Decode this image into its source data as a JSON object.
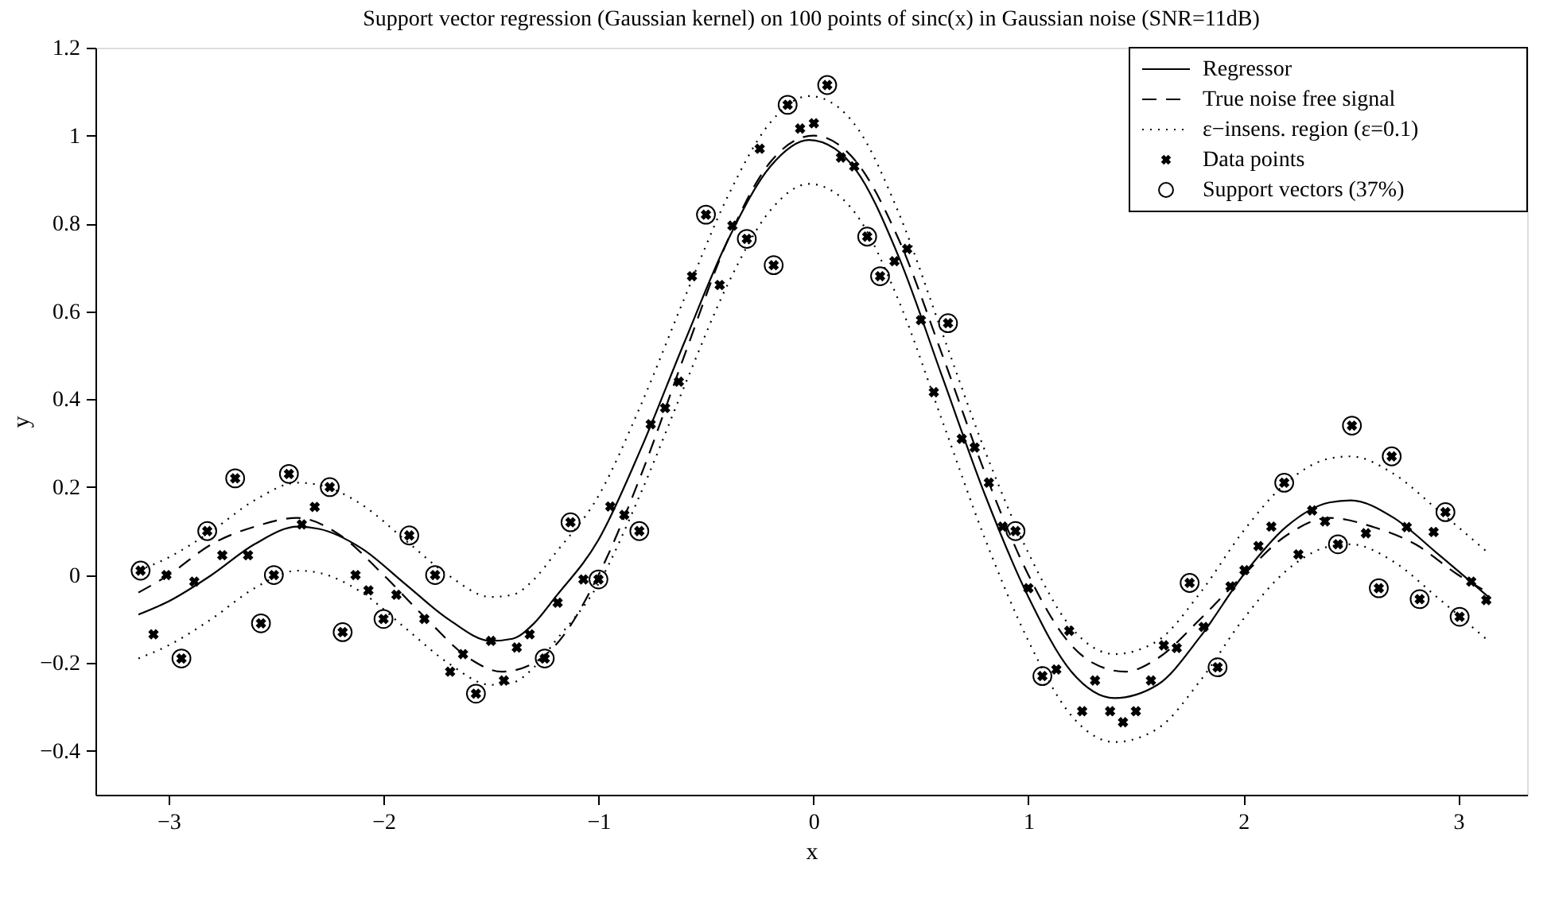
{
  "chart_data": {
    "type": "scatter",
    "title": "Support vector regression (Gaussian kernel) on 100 points of sinc(x) in Gaussian noise (SNR=11dB)",
    "xlabel": "x",
    "ylabel": "y",
    "xlim": [
      -3.34,
      3.32
    ],
    "ylim": [
      -0.5,
      1.2
    ],
    "xticks": [
      {
        "value": -3,
        "label": "−3"
      },
      {
        "value": -2,
        "label": "−2"
      },
      {
        "value": -1,
        "label": "−1"
      },
      0,
      1,
      2,
      3
    ],
    "yticks": [
      {
        "value": -0.4,
        "label": "−0.4"
      },
      {
        "value": -0.2,
        "label": "−0.2"
      },
      0,
      0.2,
      0.4,
      0.6,
      0.8,
      1,
      1.2
    ],
    "grid": false,
    "legend": "top right",
    "series": [
      {
        "name": "Regressor",
        "type": "line",
        "line_style": "solid",
        "color": "#000000",
        "x": [
          -3.14,
          -3.0,
          -2.8,
          -2.6,
          -2.4,
          -2.3,
          -2.1,
          -1.9,
          -1.7,
          -1.5,
          -1.4,
          -1.3,
          -1.2,
          -1.0,
          -0.8,
          -0.6,
          -0.4,
          -0.2,
          -0.02,
          0.1,
          0.2,
          0.4,
          0.6,
          0.8,
          1.0,
          1.2,
          1.4,
          1.6,
          1.8,
          2.0,
          2.2,
          2.4,
          2.5,
          2.7,
          2.9,
          3.14
        ],
        "values": [
          -0.09,
          -0.06,
          0.0,
          0.07,
          0.11,
          0.105,
          0.06,
          -0.02,
          -0.1,
          -0.15,
          -0.145,
          -0.11,
          -0.05,
          0.08,
          0.29,
          0.53,
          0.76,
          0.93,
          0.99,
          0.97,
          0.92,
          0.72,
          0.45,
          0.18,
          -0.05,
          -0.22,
          -0.28,
          -0.25,
          -0.14,
          0.0,
          0.11,
          0.165,
          0.17,
          0.13,
          0.05,
          -0.05
        ]
      },
      {
        "name": "True noise free signal",
        "type": "line",
        "line_style": "dashed",
        "color": "#000000",
        "x": [
          -3.14,
          -3.0,
          -2.8,
          -2.6,
          -2.4,
          -2.2,
          -2.0,
          -1.8,
          -1.6,
          -1.45,
          -1.3,
          -1.2,
          -1.0,
          -0.8,
          -0.6,
          -0.4,
          -0.2,
          0,
          0.2,
          0.4,
          0.6,
          0.8,
          1.0,
          1.2,
          1.3,
          1.45,
          1.6,
          1.8,
          2.0,
          2.2,
          2.4,
          2.6,
          2.8,
          3.0,
          3.14
        ],
        "values": [
          -0.04,
          0.0,
          0.07,
          0.11,
          0.13,
          0.09,
          0.0,
          -0.1,
          -0.19,
          -0.22,
          -0.2,
          -0.16,
          0.0,
          0.23,
          0.5,
          0.76,
          0.94,
          1.0,
          0.94,
          0.76,
          0.5,
          0.23,
          0.0,
          -0.16,
          -0.2,
          -0.22,
          -0.19,
          -0.1,
          0.0,
          0.09,
          0.13,
          0.11,
          0.07,
          0.0,
          -0.04
        ]
      },
      {
        "name": "ε−insens. region (ε=0.1)",
        "type": "line",
        "line_style": "dotted",
        "color": "#000000",
        "x": [
          -3.14,
          -3.0,
          -2.8,
          -2.6,
          -2.4,
          -2.3,
          -2.1,
          -1.9,
          -1.7,
          -1.5,
          -1.4,
          -1.3,
          -1.2,
          -1.0,
          -0.8,
          -0.6,
          -0.4,
          -0.2,
          -0.02,
          0.1,
          0.2,
          0.4,
          0.6,
          0.8,
          1.0,
          1.2,
          1.4,
          1.6,
          1.8,
          2.0,
          2.2,
          2.4,
          2.5,
          2.7,
          2.9,
          3.14
        ],
        "values": [
          0.01,
          0.04,
          0.1,
          0.17,
          0.21,
          0.205,
          0.16,
          0.08,
          0.0,
          -0.05,
          -0.045,
          -0.01,
          0.05,
          0.18,
          0.39,
          0.63,
          0.86,
          1.03,
          1.09,
          1.07,
          1.02,
          0.82,
          0.55,
          0.28,
          0.05,
          -0.12,
          -0.18,
          -0.15,
          -0.04,
          0.1,
          0.21,
          0.265,
          0.27,
          0.23,
          0.15,
          0.05
        ]
      },
      {
        "type": "line",
        "line_style": "dotted",
        "color": "#000000",
        "x": [
          -3.14,
          -3.0,
          -2.8,
          -2.6,
          -2.4,
          -2.3,
          -2.1,
          -1.9,
          -1.7,
          -1.5,
          -1.4,
          -1.3,
          -1.2,
          -1.0,
          -0.8,
          -0.6,
          -0.4,
          -0.2,
          -0.02,
          0.1,
          0.2,
          0.4,
          0.6,
          0.8,
          1.0,
          1.2,
          1.4,
          1.6,
          1.8,
          2.0,
          2.2,
          2.4,
          2.5,
          2.7,
          2.9,
          3.14
        ],
        "values": [
          -0.19,
          -0.16,
          -0.1,
          -0.03,
          0.01,
          0.005,
          -0.04,
          -0.12,
          -0.2,
          -0.25,
          -0.245,
          -0.21,
          -0.15,
          -0.02,
          0.19,
          0.43,
          0.66,
          0.83,
          0.89,
          0.87,
          0.82,
          0.62,
          0.35,
          0.08,
          -0.15,
          -0.32,
          -0.38,
          -0.35,
          -0.24,
          -0.1,
          0.01,
          0.065,
          0.07,
          0.03,
          -0.05,
          -0.15
        ]
      },
      {
        "name": "Data points",
        "marker": "cross",
        "color": "#000000",
        "x": [
          -3.13,
          -3.07,
          -3.01,
          -2.94,
          -2.88,
          -2.82,
          -2.75,
          -2.69,
          -2.63,
          -2.57,
          -2.51,
          -2.44,
          -2.38,
          -2.32,
          -2.25,
          -2.19,
          -2.13,
          -2.07,
          -2.0,
          -1.94,
          -1.88,
          -1.81,
          -1.76,
          -1.69,
          -1.63,
          -1.57,
          -1.5,
          -1.44,
          -1.38,
          -1.32,
          -1.25,
          -1.19,
          -1.13,
          -1.07,
          -1.0,
          -0.945,
          -0.88,
          -0.81,
          -0.757,
          -0.69,
          -0.626,
          -0.565,
          -0.5,
          -0.436,
          -0.377,
          -0.31,
          -0.25,
          -0.185,
          -0.12,
          -0.062,
          0.002,
          0.064,
          0.128,
          0.19,
          0.25,
          0.31,
          0.377,
          0.436,
          0.5,
          0.56,
          0.626,
          0.69,
          0.75,
          0.816,
          0.88,
          0.94,
          1.0,
          1.065,
          1.13,
          1.19,
          1.25,
          1.31,
          1.38,
          1.44,
          1.5,
          1.57,
          1.63,
          1.69,
          1.75,
          1.815,
          1.88,
          1.94,
          2.005,
          2.07,
          2.13,
          2.19,
          2.256,
          2.32,
          2.38,
          2.44,
          2.505,
          2.57,
          2.63,
          2.69,
          2.76,
          2.82,
          2.885,
          2.94,
          3.006,
          3.06,
          3.13
        ],
        "values": [
          0.01,
          -0.135,
          0.0,
          -0.19,
          -0.015,
          0.1,
          0.045,
          0.22,
          0.045,
          -0.11,
          0.0,
          0.23,
          0.115,
          0.155,
          0.2,
          -0.13,
          0.0,
          -0.035,
          -0.1,
          -0.045,
          0.09,
          -0.1,
          0.0,
          -0.22,
          -0.18,
          -0.27,
          -0.15,
          -0.24,
          -0.165,
          -0.135,
          -0.19,
          -0.063,
          0.12,
          -0.01,
          -0.01,
          0.156,
          0.137,
          0.1,
          0.343,
          0.38,
          0.44,
          0.68,
          0.82,
          0.66,
          0.795,
          0.765,
          0.97,
          0.705,
          1.07,
          1.016,
          1.028,
          1.115,
          0.95,
          0.93,
          0.77,
          0.68,
          0.714,
          0.742,
          0.58,
          0.416,
          0.573,
          0.31,
          0.29,
          0.21,
          0.11,
          0.1,
          -0.03,
          -0.23,
          -0.215,
          -0.127,
          -0.31,
          -0.24,
          -0.31,
          -0.335,
          -0.31,
          -0.24,
          -0.16,
          -0.166,
          -0.018,
          -0.118,
          -0.21,
          -0.026,
          0.011,
          0.066,
          0.11,
          0.21,
          0.047,
          0.147,
          0.122,
          0.07,
          0.34,
          0.095,
          -0.03,
          0.27,
          0.109,
          -0.055,
          0.098,
          0.143,
          -0.095,
          -0.015,
          -0.057
        ]
      },
      {
        "name": "Support vectors (37%)",
        "marker": "circle",
        "color": "#000000",
        "x": [
          -3.13,
          -2.94,
          -2.82,
          -2.69,
          -2.57,
          -2.51,
          -2.44,
          -2.25,
          -2.19,
          -2.0,
          -1.88,
          -1.76,
          -1.57,
          -1.25,
          -1.13,
          -1.0,
          -0.81,
          -0.5,
          -0.31,
          -0.185,
          -0.12,
          0.064,
          0.25,
          0.31,
          0.626,
          0.94,
          1.065,
          1.75,
          1.88,
          2.19,
          2.44,
          2.505,
          2.63,
          2.69,
          2.82,
          2.94,
          3.006
        ],
        "values": [
          0.01,
          -0.19,
          0.1,
          0.22,
          -0.11,
          0.0,
          0.23,
          0.2,
          -0.13,
          -0.1,
          0.09,
          0.0,
          -0.27,
          -0.19,
          0.12,
          -0.01,
          0.1,
          0.82,
          0.765,
          0.705,
          1.07,
          1.115,
          0.77,
          0.68,
          0.573,
          0.1,
          -0.23,
          -0.018,
          -0.21,
          0.21,
          0.07,
          0.34,
          -0.03,
          0.27,
          -0.055,
          0.143,
          -0.095
        ]
      }
    ]
  }
}
